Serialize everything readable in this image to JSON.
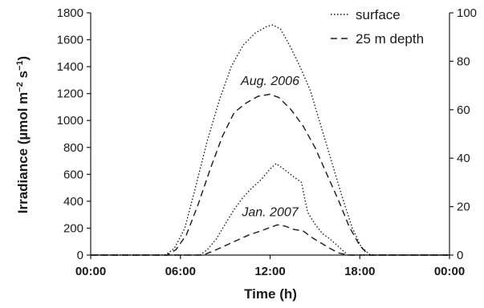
{
  "chart_data": {
    "type": "line",
    "xlabel": "Time (h)",
    "ylabel_main": "Irradiance (µmol m",
    "ylabel_sup1": "−2",
    "ylabel_mid": " s",
    "ylabel_sup2": "−1",
    "ylabel_end": ")",
    "x_ticks": [
      "00:00",
      "06:00",
      "12:00",
      "18:00",
      "00:00"
    ],
    "x_range_hours": [
      0,
      24
    ],
    "y_left_ticks": [
      "0",
      "200",
      "400",
      "600",
      "800",
      "1000",
      "1200",
      "1400",
      "1600",
      "1800"
    ],
    "y_left_range": [
      0,
      1800
    ],
    "y_right_ticks": [
      "0",
      "20",
      "40",
      "60",
      "80",
      "100"
    ],
    "y_right_range": [
      0,
      100
    ],
    "grid": false,
    "legend_position": "top-right",
    "legend": [
      {
        "name": "surface",
        "style": "dotted"
      },
      {
        "name": "25 m depth",
        "style": "dashed"
      }
    ],
    "annotations": [
      {
        "text": "Aug. 2006",
        "x": 12.0,
        "y": 1265
      },
      {
        "text": "Jan. 2007",
        "x": 12.0,
        "y": 290
      }
    ],
    "series": [
      {
        "name": "surface",
        "period": "Aug. 2006",
        "axis": "left",
        "style": "dotted",
        "x": [
          0,
          5.0,
          5.6,
          6.3,
          7.0,
          7.8,
          8.6,
          9.4,
          10.2,
          11.0,
          11.8,
          12.2,
          12.7,
          13.3,
          14.0,
          14.7,
          15.4,
          16.1,
          16.8,
          17.5,
          18.1,
          18.7,
          24
        ],
        "y": [
          0,
          0,
          50,
          200,
          500,
          850,
          1150,
          1400,
          1560,
          1650,
          1700,
          1710,
          1680,
          1560,
          1400,
          1220,
          960,
          700,
          440,
          200,
          60,
          0,
          0
        ]
      },
      {
        "name": "25 m depth",
        "period": "Aug. 2006",
        "axis": "left",
        "style": "dashed",
        "x": [
          0,
          5.1,
          5.7,
          6.4,
          7.2,
          8.0,
          8.8,
          9.6,
          10.4,
          11.2,
          12.0,
          12.6,
          13.4,
          14.2,
          15.0,
          15.8,
          16.6,
          17.3,
          18.0,
          18.6,
          24
        ],
        "y": [
          0,
          0,
          40,
          150,
          380,
          640,
          880,
          1060,
          1130,
          1180,
          1195,
          1170,
          1080,
          960,
          800,
          600,
          400,
          210,
          70,
          0,
          0
        ]
      },
      {
        "name": "surface",
        "period": "Jan. 2007",
        "axis": "left",
        "style": "dotted",
        "x": [
          0,
          7.3,
          7.8,
          8.4,
          9.0,
          9.6,
          10.2,
          10.8,
          11.4,
          12.0,
          12.4,
          12.9,
          13.6,
          14.1,
          14.5,
          15.0,
          15.5,
          16.0,
          16.6,
          17.2,
          24
        ],
        "y": [
          0,
          0,
          40,
          120,
          230,
          340,
          430,
          500,
          560,
          640,
          680,
          640,
          580,
          540,
          320,
          230,
          160,
          120,
          60,
          0,
          0
        ]
      },
      {
        "name": "25 m depth",
        "period": "Jan. 2007",
        "axis": "left",
        "style": "dashed",
        "x": [
          0,
          7.5,
          8.2,
          9.0,
          9.8,
          10.6,
          11.4,
          12.0,
          12.5,
          13.0,
          13.6,
          14.2,
          14.8,
          15.4,
          16.0,
          16.6,
          17.2,
          24
        ],
        "y": [
          0,
          0,
          30,
          70,
          110,
          150,
          180,
          205,
          225,
          215,
          190,
          180,
          130,
          90,
          50,
          15,
          0,
          0
        ]
      }
    ]
  }
}
